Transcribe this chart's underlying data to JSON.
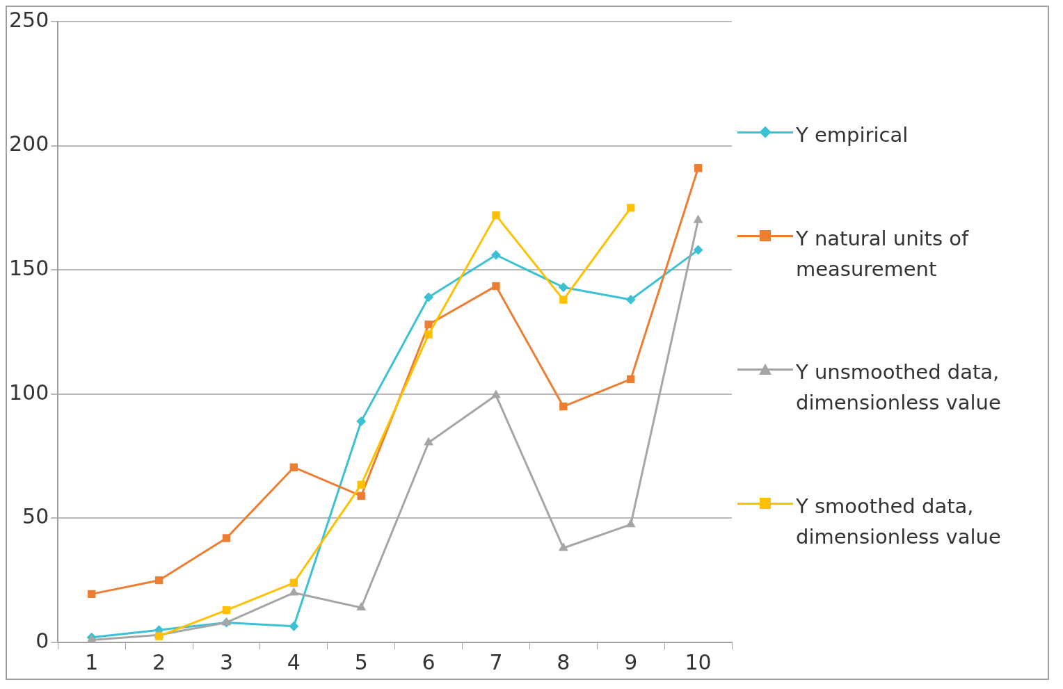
{
  "chart_data": {
    "type": "line",
    "categories": [
      "1",
      "2",
      "3",
      "4",
      "5",
      "6",
      "7",
      "8",
      "9",
      "10"
    ],
    "series": [
      {
        "name": "Y empirical",
        "color": "#3cc0d4",
        "marker": "diamond",
        "values": [
          2,
          5,
          8,
          6.5,
          89,
          139,
          156,
          143,
          138,
          158
        ]
      },
      {
        "name": "Y natural units of measurement",
        "color": "#ed7d31",
        "marker": "square",
        "values": [
          19.5,
          25,
          42,
          70.5,
          59,
          128,
          143.5,
          95,
          106,
          191
        ]
      },
      {
        "name": "Y unsmoothed data, dimensionless value",
        "color": "#a5a5a5",
        "marker": "triangle",
        "values": [
          1,
          3,
          8,
          20,
          14,
          80.5,
          99.5,
          38,
          47.5,
          170
        ]
      },
      {
        "name": "Y smoothed data, dimensionless value",
        "color": "#ffc000",
        "marker": "square",
        "values": [
          null,
          2.5,
          13,
          24,
          63.5,
          124,
          172,
          138,
          175,
          null
        ]
      }
    ],
    "ylim": [
      0,
      250
    ],
    "yticks": [
      0,
      50,
      100,
      150,
      200,
      250
    ],
    "grid": "y",
    "legend": "right"
  }
}
